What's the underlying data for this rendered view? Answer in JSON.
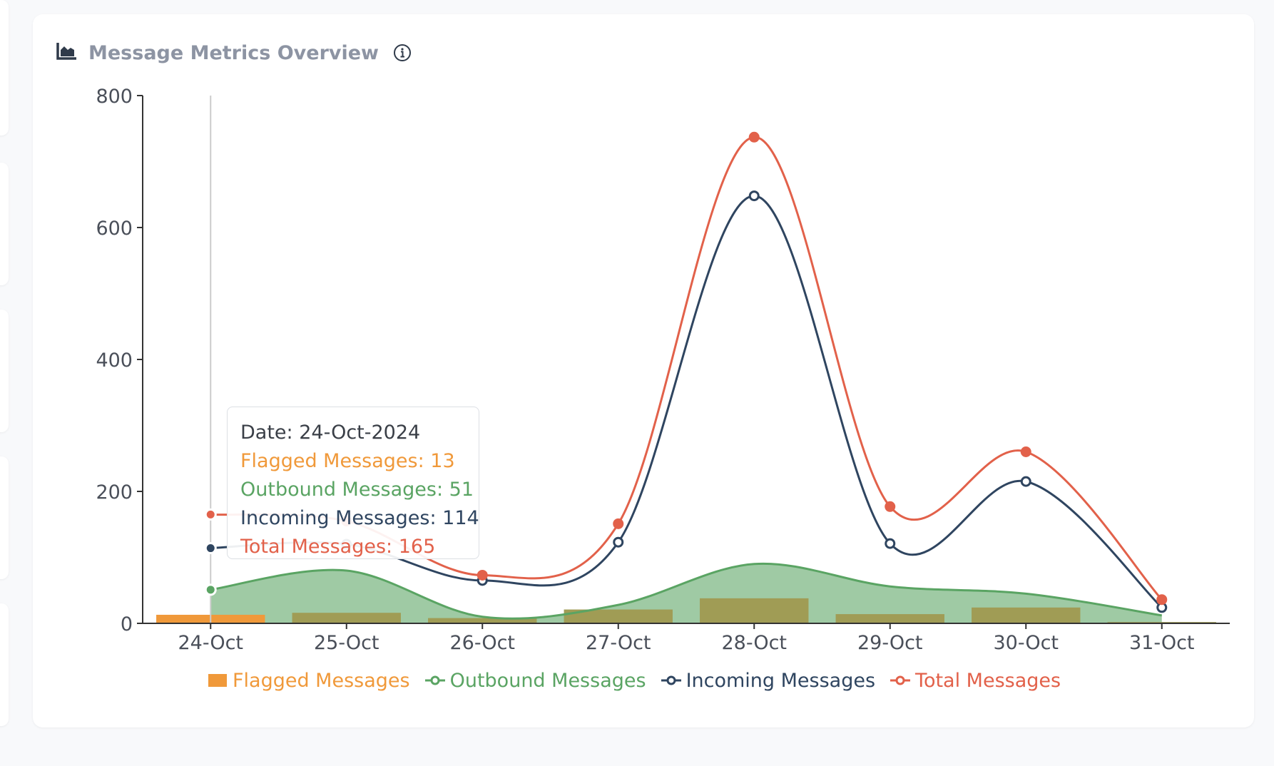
{
  "card": {
    "title": "Message Metrics Overview",
    "chart_icon": "area-chart-icon",
    "info_icon": "info-icon"
  },
  "colors": {
    "flagged": "#f0993a",
    "outbound": "#5aa463",
    "outbound_fill": "#9fcaa4",
    "overlap_bar": "#a09c55",
    "incoming": "#2f4560",
    "total": "#e2614a",
    "axis": "#333333",
    "crosshair": "#cccccc"
  },
  "tooltip": {
    "date": "Date: 24-Oct-2024",
    "flagged": "Flagged Messages: 13",
    "outbound": "Outbound Messages: 51",
    "incoming": "Incoming Messages: 114",
    "total": "Total Messages: 165"
  },
  "chart_data": {
    "type": "line",
    "categories": [
      "24-Oct",
      "25-Oct",
      "26-Oct",
      "27-Oct",
      "28-Oct",
      "29-Oct",
      "30-Oct",
      "31-Oct"
    ],
    "yticks": [
      "0",
      "200",
      "400",
      "600",
      "800"
    ],
    "ylim": [
      0,
      800
    ],
    "active_category": "24-Oct",
    "series": [
      {
        "name": "Flagged Messages",
        "type": "bar",
        "values": [
          13,
          16,
          8,
          21,
          38,
          14,
          24,
          2
        ]
      },
      {
        "name": "Outbound Messages",
        "type": "area",
        "values": [
          51,
          80,
          10,
          28,
          90,
          56,
          45,
          12
        ]
      },
      {
        "name": "Incoming Messages",
        "type": "line",
        "values": [
          114,
          120,
          65,
          123,
          648,
          121,
          215,
          24
        ]
      },
      {
        "name": "Total Messages",
        "type": "line",
        "values": [
          165,
          155,
          73,
          151,
          737,
          177,
          260,
          36
        ]
      }
    ],
    "legend": [
      "Flagged Messages",
      "Outbound Messages",
      "Incoming Messages",
      "Total Messages"
    ],
    "legend_position": "bottom"
  }
}
